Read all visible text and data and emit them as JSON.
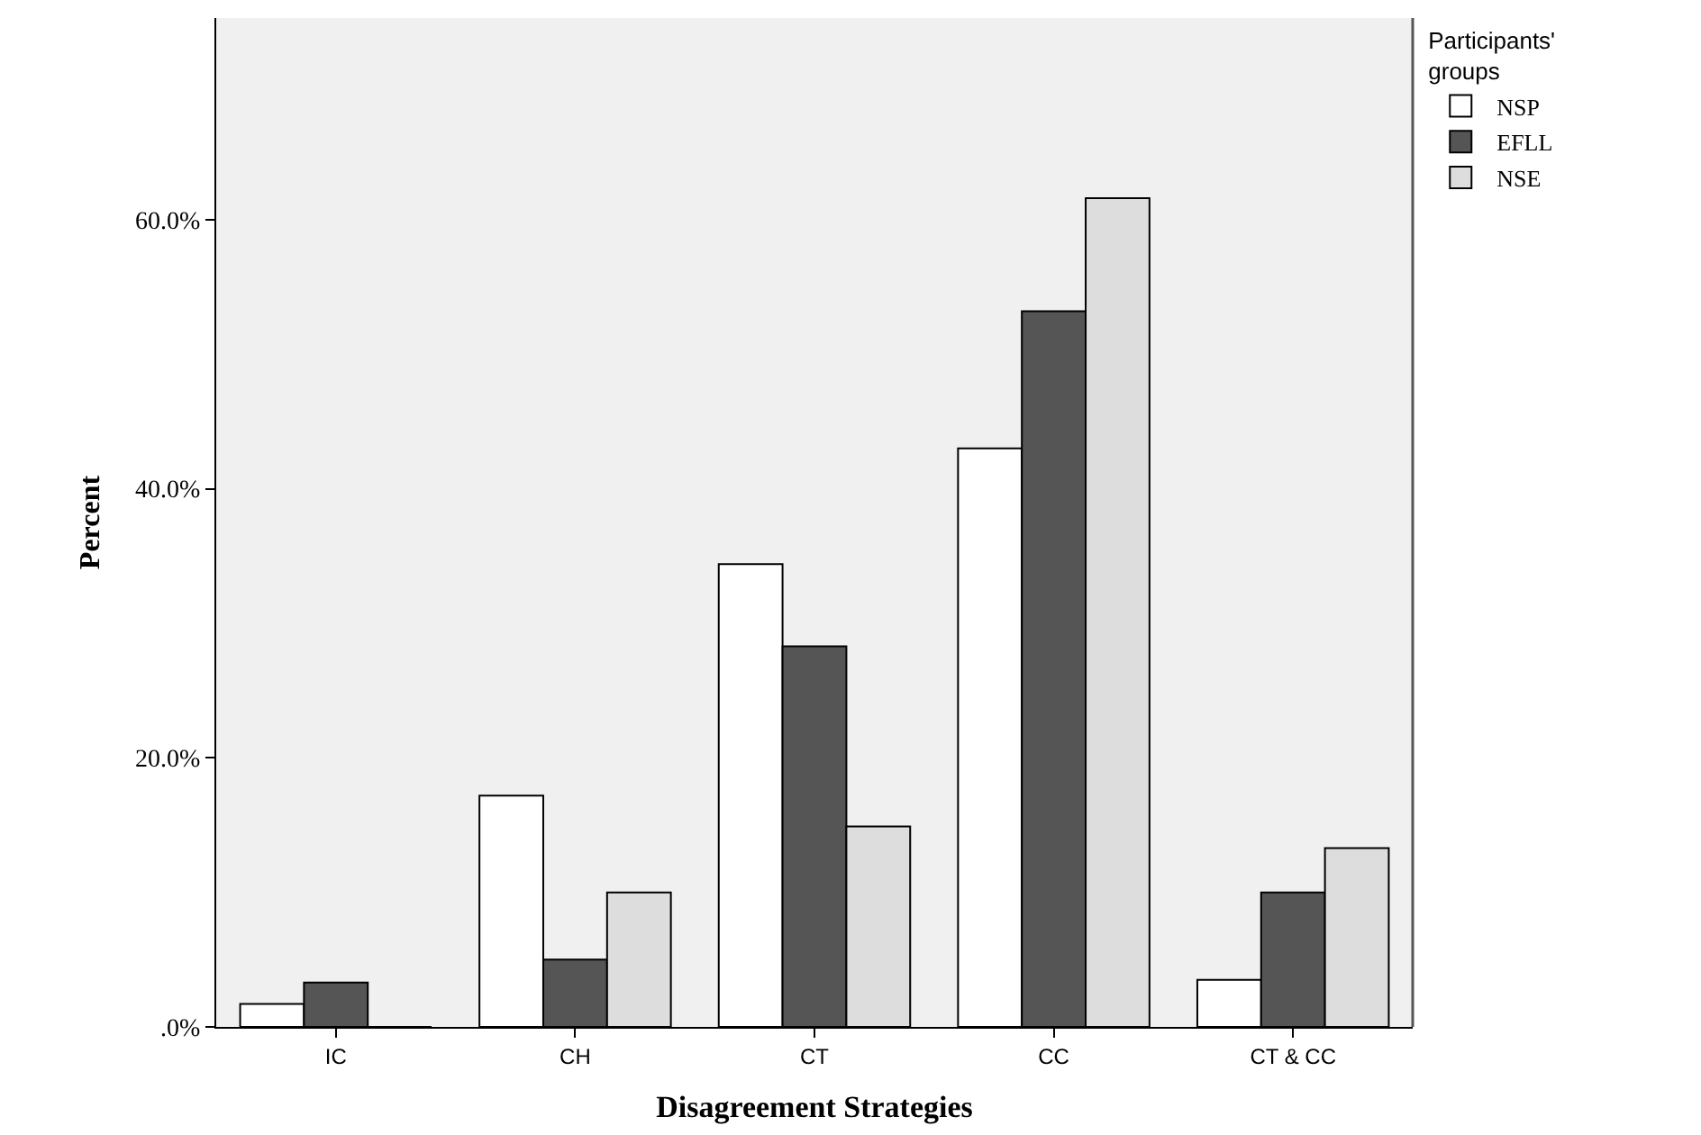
{
  "chart_data": {
    "type": "bar",
    "xlabel": "Disagreement Strategies",
    "ylabel": "Percent",
    "legend_title": "Participants'\ngroups",
    "legend": "top right",
    "grid": false,
    "categories": [
      "IC",
      "CH",
      "CT",
      "CC",
      "CT & CC"
    ],
    "ylim": [
      0,
      75
    ],
    "yticks": [
      {
        "value": 0,
        "label": ".0%"
      },
      {
        "value": 20,
        "label": "20.0%"
      },
      {
        "value": 40,
        "label": "40.0%"
      },
      {
        "value": 60,
        "label": "60.0%"
      }
    ],
    "series": [
      {
        "name": "NSP",
        "color": "#ffffff",
        "values": [
          1.7,
          17.2,
          34.4,
          43.0,
          3.5
        ]
      },
      {
        "name": "EFLL",
        "color": "#555555",
        "values": [
          3.3,
          5.0,
          28.3,
          53.2,
          10.0
        ]
      },
      {
        "name": "NSE",
        "color": "#dddddd",
        "values": [
          0,
          10.0,
          14.9,
          61.6,
          13.3
        ]
      }
    ]
  }
}
